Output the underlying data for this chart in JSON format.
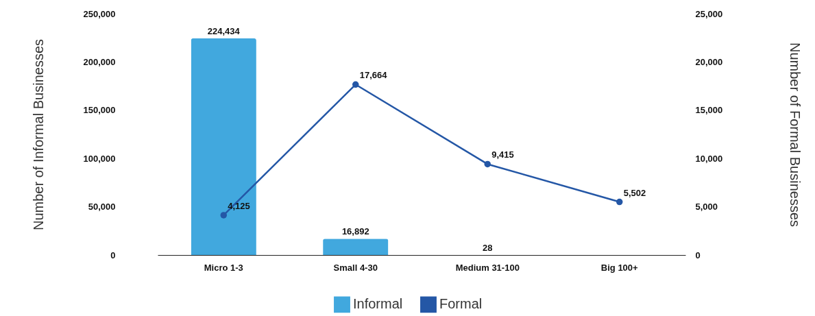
{
  "chart_data": {
    "type": "bar",
    "ylabel": "Number of Informal Businesses",
    "y2label": "Number of Formal Businesses",
    "categories": [
      "Micro 1-3",
      "Small 4-30",
      "Medium 31-100",
      "Big 100+"
    ],
    "series": [
      {
        "name": "Informal",
        "color": "#41a8de",
        "values": [
          224434,
          16892,
          28,
          null
        ],
        "value_labels": [
          "224,434",
          "16,892",
          "28",
          null
        ]
      },
      {
        "name": "Formal",
        "type": "line",
        "axis": "y2",
        "color": "#2457a6",
        "values": [
          4125,
          17664,
          9415,
          5502
        ],
        "value_labels": [
          "4,125",
          "17,664",
          "9,415",
          "5,502"
        ]
      }
    ],
    "ylim": [
      0,
      250000
    ],
    "yticks": [
      0,
      {
        "value": 50000,
        "label": "50,000"
      },
      {
        "value": 100000,
        "label": "100,000"
      },
      {
        "value": 150000,
        "label": "150,000"
      },
      {
        "value": 200000,
        "label": "200,000"
      },
      {
        "value": 250000,
        "label": "250,000"
      }
    ],
    "y2lim": [
      0,
      25000
    ],
    "y2ticks": [
      0,
      {
        "value": 5000,
        "label": "5,000"
      },
      {
        "value": 10000,
        "label": "10,000"
      },
      {
        "value": 15000,
        "label": "15,000"
      },
      {
        "value": 20000,
        "label": "20,000"
      },
      {
        "value": 25000,
        "label": "25,000"
      }
    ],
    "legend": "bottom",
    "marker": "circle",
    "line_style": "solid"
  }
}
